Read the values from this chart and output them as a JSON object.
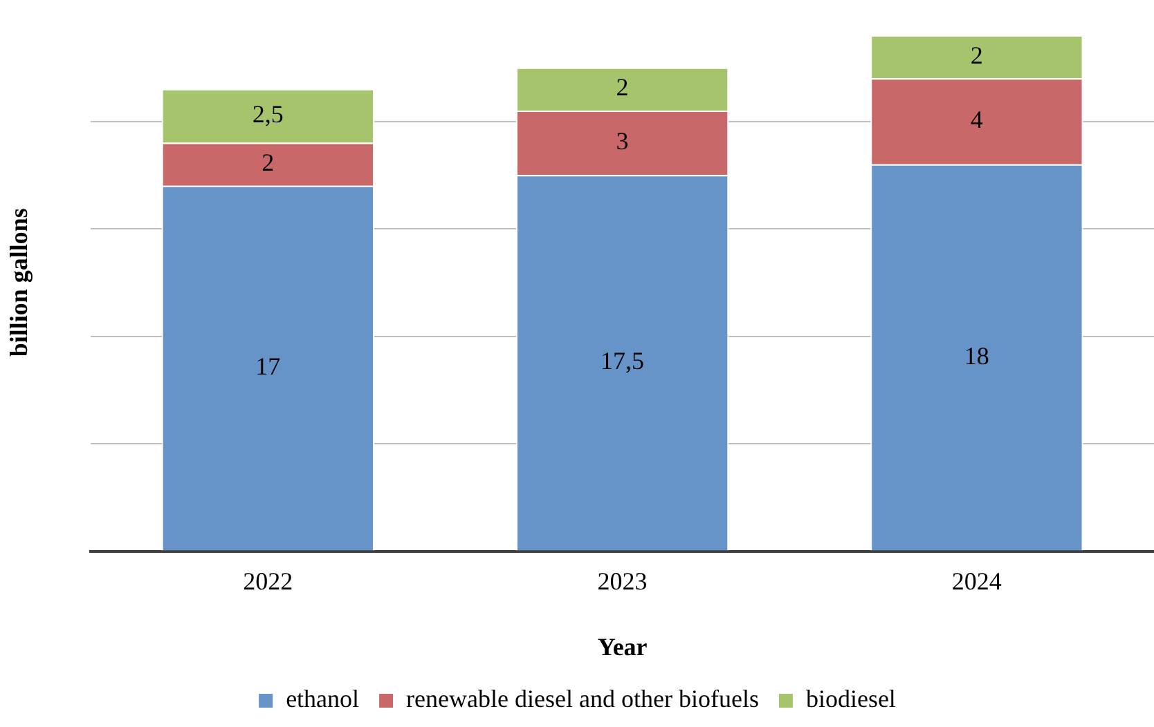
{
  "chart_data": {
    "type": "bar",
    "stacked": true,
    "xlabel": "Year",
    "ylabel": "billion gallons",
    "categories": [
      "2022",
      "2023",
      "2024"
    ],
    "series": [
      {
        "name": "ethanol",
        "color": "#6794c8",
        "values": [
          17,
          17.5,
          18
        ],
        "value_labels": [
          "17",
          "17,5",
          "18"
        ]
      },
      {
        "name": "renewable diesel and other biofuels",
        "color": "#c96868",
        "values": [
          2,
          3,
          4
        ],
        "value_labels": [
          "2",
          "3",
          "4"
        ]
      },
      {
        "name": "biodiesel",
        "color": "#a6c46c",
        "values": [
          2.5,
          2,
          2
        ],
        "value_labels": [
          "2,5",
          "2",
          "2"
        ]
      }
    ],
    "yticks": [
      {
        "value": 0,
        "label": null
      },
      {
        "value": 5,
        "label": null
      },
      {
        "value": 10,
        "label": null
      },
      {
        "value": 15,
        "label": null
      },
      {
        "value": 20,
        "label": null
      }
    ],
    "grid": "y",
    "tick_labels": "x",
    "legend": "bottom"
  }
}
